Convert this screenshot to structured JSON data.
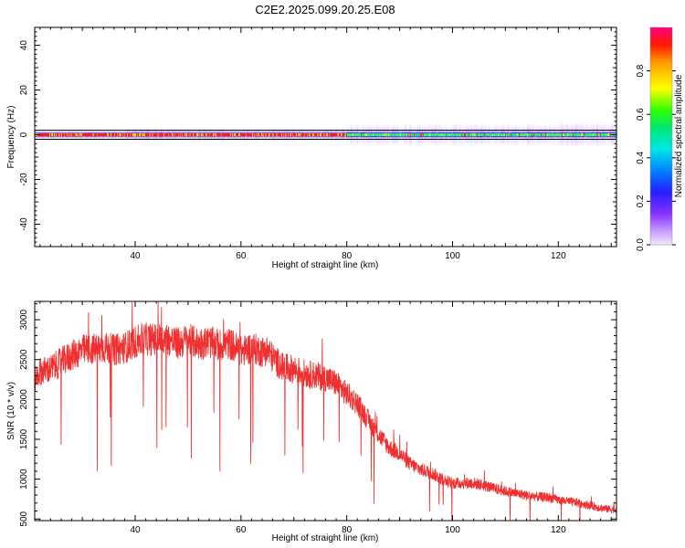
{
  "figure": {
    "title": "C2E2.2025.099.20.25.E08"
  },
  "chart_data": [
    {
      "type": "heatmap",
      "xlabel": "Height of straight line (km)",
      "ylabel": "Frequency (Hz)",
      "xlim": [
        21,
        131
      ],
      "ylim": [
        -50,
        48
      ],
      "x_ticks": [
        40,
        60,
        80,
        100,
        120
      ],
      "y_ticks": [
        40,
        20,
        0,
        -20,
        -40
      ],
      "colorbar": {
        "label": "Normalized spectral amplitude",
        "range": [
          0.0,
          1.0
        ],
        "ticks": [
          0.0,
          0.2,
          0.4,
          0.6,
          0.8
        ],
        "colormap": "rainbow (violet-blue-cyan-green-yellow-red-magenta)"
      },
      "reference_lines_hz": [
        2,
        -2
      ],
      "band": {
        "center_hz": 0,
        "description": "strong narrow band at 0 Hz, red/yellow core until ~80 km, green core beyond with purple halo widening to ~±4 Hz"
      }
    },
    {
      "type": "line",
      "xlabel": "Height of straight line (km)",
      "ylabel": "SNR (10 * v/v)",
      "xlim": [
        21,
        131
      ],
      "ylim": [
        480,
        3230
      ],
      "x_ticks": [
        40,
        60,
        80,
        100,
        120
      ],
      "y_ticks": [
        3000,
        2500,
        2000,
        1500,
        1000,
        500
      ],
      "line_color": "#f03030",
      "series": [
        {
          "x": [
            21,
            22,
            24,
            26,
            28,
            30,
            32,
            34,
            36,
            38,
            40,
            42,
            44,
            46,
            48,
            50,
            52,
            54,
            56,
            58,
            60,
            62,
            64,
            65,
            66,
            68,
            70,
            72,
            74,
            76,
            78,
            80,
            82,
            84,
            86,
            88,
            90,
            92,
            94,
            96,
            98,
            100,
            102,
            104,
            106,
            108,
            110,
            112,
            114,
            116,
            118,
            120,
            122,
            124,
            126,
            128,
            130,
            131
          ],
          "y": [
            2250,
            2350,
            2380,
            2470,
            2550,
            2620,
            2630,
            2650,
            2620,
            2650,
            2720,
            2760,
            2750,
            2760,
            2700,
            2750,
            2700,
            2720,
            2680,
            2700,
            2600,
            2650,
            2600,
            2620,
            2520,
            2400,
            2380,
            2330,
            2300,
            2270,
            2200,
            2070,
            1950,
            1750,
            1560,
            1400,
            1320,
            1190,
            1120,
            1080,
            1000,
            950,
            950,
            950,
            920,
            880,
            850,
            820,
            800,
            780,
            770,
            740,
            720,
            700,
            670,
            640,
            620,
            620
          ]
        }
      ]
    }
  ]
}
